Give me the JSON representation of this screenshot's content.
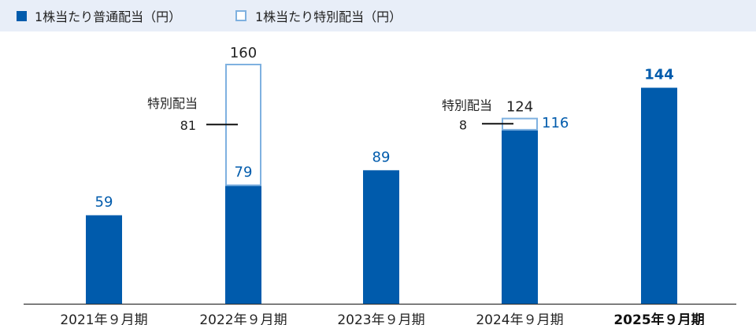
{
  "legend": {
    "regular_label": "1株当たり普通配当（円）",
    "special_label": "1株当たり特別配当（円）"
  },
  "chart_data": {
    "type": "bar",
    "stacked": true,
    "categories": [
      "2021年９月期",
      "2022年９月期",
      "2023年９月期",
      "2024年９月期",
      "2025年９月期"
    ],
    "series": [
      {
        "name": "1株当たり普通配当（円）",
        "values": [
          59,
          79,
          89,
          116,
          144
        ],
        "style": "filled"
      },
      {
        "name": "1株当たり特別配当（円）",
        "values": [
          0,
          81,
          0,
          8,
          0
        ],
        "style": "outline"
      }
    ],
    "totals": [
      null,
      160,
      null,
      124,
      null
    ],
    "highlight_category": "2025年９月期",
    "annotation_label": "特別配当",
    "ylim": [
      0,
      175
    ],
    "colors": {
      "regular": "#005bac",
      "special": "#7fb1e0",
      "legend_band": "#e8eef8",
      "axis": "#333333"
    }
  }
}
